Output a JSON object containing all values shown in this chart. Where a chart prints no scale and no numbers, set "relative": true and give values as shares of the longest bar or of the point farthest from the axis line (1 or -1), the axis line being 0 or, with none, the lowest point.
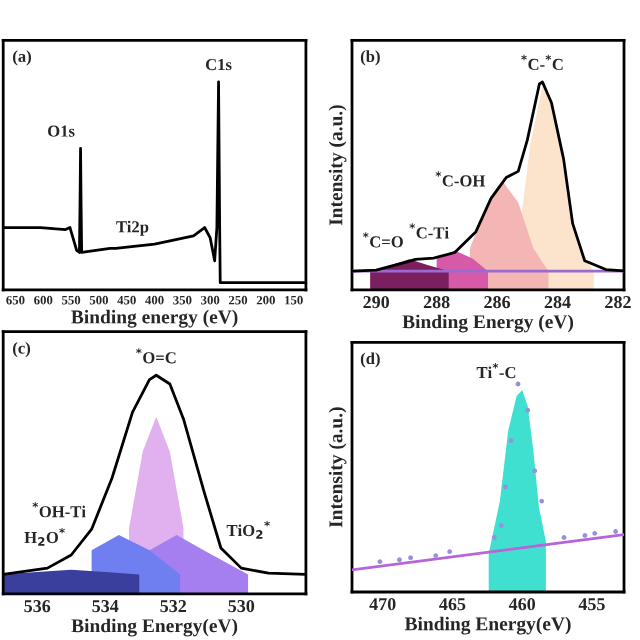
{
  "chart_data": [
    {
      "type": "line",
      "relative": true,
      "xlabel": "Binding energy (eV)",
      "xlim": [
        672,
        128
      ],
      "xticks": [
        650,
        600,
        550,
        500,
        450,
        400,
        350,
        300,
        250,
        200,
        150
      ],
      "tick_labels": "x",
      "annotations": [
        "(a)",
        {
          "text": "O1s",
          "x": 533,
          "y": 0.68
        },
        {
          "text": "C1s",
          "x": 285,
          "y": 1.0
        },
        {
          "text": "Ti2p",
          "x": 400,
          "y": 0.22
        }
      ],
      "series": [
        {
          "color": "#000000",
          "x": [
            672,
            605,
            560,
            552,
            540,
            535,
            534,
            533,
            532,
            531,
            480,
            470,
            400,
            330,
            310,
            300,
            292,
            288,
            285,
            283,
            282,
            128
          ],
          "values": [
            0.3,
            0.3,
            0.29,
            0.3,
            0.19,
            0.18,
            0.4,
            0.68,
            0.4,
            0.18,
            0.2,
            0.2,
            0.22,
            0.26,
            0.3,
            0.25,
            0.14,
            0.3,
            1.0,
            0.3,
            0.035,
            0.035
          ]
        }
      ]
    },
    {
      "type": "line",
      "relative": true,
      "xlabel": "Binding Energy (eV)",
      "ylabel": "Intensity (a.u.)",
      "xlim": [
        290.8,
        281.8
      ],
      "xticks": [
        290,
        288,
        286,
        284,
        282
      ],
      "tick_labels": "x",
      "annotations": [
        "(b)",
        {
          "text": "$^{*}$C=O",
          "x": 288.9,
          "y": 0.147
        },
        {
          "text": "$^{*}$C-Ti",
          "x": 287.4,
          "y": 0.19
        },
        {
          "text": "$^{*}$C-OH",
          "x": 286.2,
          "y": 0.44
        },
        {
          "text": "$^{*}$C-$^{*}$C",
          "x": 284.5,
          "y": 1.0
        }
      ],
      "series": [
        {
          "type": "area",
          "color": "#fbe3cc",
          "x": [
            285.2,
            284.9,
            284.5,
            284.1,
            283.7,
            283.3,
            282.8
          ],
          "values": [
            0.35,
            0.7,
            0.98,
            0.85,
            0.5,
            0.2,
            0.09
          ]
        },
        {
          "type": "area",
          "color": "#f4b5b5",
          "x": [
            286.9,
            286.3,
            285.8,
            285.3,
            284.8,
            284.3
          ],
          "values": [
            0.2,
            0.42,
            0.52,
            0.42,
            0.2,
            0.09
          ]
        },
        {
          "type": "area",
          "color": "#d65aa8",
          "x": [
            288.0,
            287.4,
            286.8,
            286.3
          ],
          "values": [
            0.15,
            0.19,
            0.15,
            0.09
          ]
        },
        {
          "type": "area",
          "color": "#7b1f5e",
          "x": [
            290.2,
            289.5,
            288.9,
            288.3,
            287.6
          ],
          "values": [
            0.09,
            0.12,
            0.147,
            0.12,
            0.09
          ]
        },
        {
          "color": "#9b6ad0",
          "x": [
            290.8,
            281.8
          ],
          "values": [
            0.09,
            0.09
          ]
        },
        {
          "color": "#000000",
          "x": [
            290.8,
            290,
            289.1,
            288.7,
            288.1,
            287.4,
            286.7,
            286.2,
            285.7,
            285.3,
            285,
            284.6,
            284.5,
            284.2,
            283.8,
            283.5,
            283.1,
            282.4,
            281.8
          ],
          "values": [
            0.09,
            0.095,
            0.13,
            0.147,
            0.153,
            0.18,
            0.28,
            0.44,
            0.54,
            0.57,
            0.72,
            0.99,
            1.0,
            0.9,
            0.63,
            0.32,
            0.14,
            0.098,
            0.092
          ]
        }
      ]
    },
    {
      "type": "line",
      "relative": true,
      "xlabel": "Binding Energy(eV)",
      "xlim": [
        537,
        528.1
      ],
      "xticks": [
        536,
        534,
        532,
        530
      ],
      "tick_labels": "x",
      "annotations": [
        "(c)",
        {
          "text": "$^{*}$O=C",
          "x": 532.5,
          "y": 1.0
        },
        {
          "text": "$^{*}$OH-Ti",
          "x": 534.4,
          "y": 0.296
        },
        {
          "text": "H$_{2}$O$^{*}$",
          "x": 535,
          "y": 0.178
        },
        {
          "text": "TiO$_{2}$$^{*}$",
          "x": 530.6,
          "y": 0.21
        }
      ],
      "series": [
        {
          "type": "area",
          "color": "#e0b0ef",
          "x": [
            533.3,
            532.9,
            532.5,
            532.1,
            531.7
          ],
          "values": [
            0.3,
            0.65,
            0.81,
            0.65,
            0.3
          ]
        },
        {
          "type": "area",
          "color": "#a57ef0",
          "x": [
            532.8,
            531.9,
            531.0,
            529.8
          ],
          "values": [
            0.19,
            0.27,
            0.19,
            0.089
          ]
        },
        {
          "type": "area",
          "color": "#6f7fef",
          "x": [
            534.4,
            533.6,
            532.7,
            531.8
          ],
          "values": [
            0.2,
            0.27,
            0.2,
            0.089
          ]
        },
        {
          "type": "area",
          "color": "#3a3f9e",
          "x": [
            537,
            536,
            535,
            534,
            533
          ],
          "values": [
            0.09,
            0.1,
            0.11,
            0.1,
            0.089
          ]
        },
        {
          "color": "#000000",
          "x": [
            537,
            535.7,
            535,
            534.4,
            533.8,
            533.2,
            532.7,
            532.5,
            532.1,
            531.7,
            531.1,
            530.6,
            530,
            529.2,
            528.1
          ],
          "values": [
            0.089,
            0.118,
            0.178,
            0.296,
            0.53,
            0.83,
            0.98,
            1.0,
            0.96,
            0.8,
            0.47,
            0.21,
            0.118,
            0.095,
            0.089
          ]
        }
      ]
    },
    {
      "type": "line",
      "relative": true,
      "xlabel": "Binding Energy(eV)",
      "ylabel": "Intensity (a.u.)",
      "xlim": [
        472.2,
        452.7
      ],
      "xticks": [
        470,
        465,
        460,
        455
      ],
      "tick_labels": "x",
      "annotations": [
        "(d)",
        {
          "text": "Ti$^{*}$-C",
          "x": 460,
          "y": 0.971
        }
      ],
      "series": [
        {
          "type": "area",
          "color": "#40e0d0",
          "x": [
            462.4,
            461.6,
            461,
            460.4,
            460,
            459.6,
            459.2,
            458.8,
            458.3
          ],
          "values": [
            0.184,
            0.437,
            0.777,
            0.942,
            0.971,
            0.893,
            0.68,
            0.408,
            0.243
          ]
        },
        {
          "color": "#b565d8",
          "x": [
            472.2,
            452.7
          ],
          "values": [
            0.106,
            0.276
          ]
        },
        {
          "type": "scatter",
          "marker": "circle",
          "color": "#9a8ee0",
          "x": [
            470.2,
            468.8,
            468.0,
            466.2,
            465.2,
            462.0,
            461.5,
            461.2,
            460.8,
            460.3,
            459.6,
            459.1,
            458.6,
            457.0,
            455.5,
            454.8,
            453.3
          ],
          "values": [
            0.146,
            0.155,
            0.165,
            0.175,
            0.194,
            0.262,
            0.32,
            0.505,
            0.728,
            1.0,
            0.874,
            0.583,
            0.437,
            0.262,
            0.272,
            0.282,
            0.291
          ]
        }
      ]
    }
  ]
}
